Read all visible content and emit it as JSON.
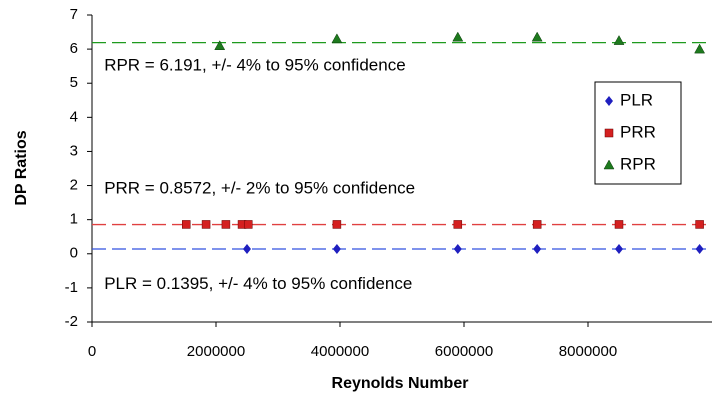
{
  "chart_data": {
    "type": "scatter",
    "xlabel": "Reynolds Number",
    "ylabel": "DP Ratios",
    "xlim": [
      0,
      10000000
    ],
    "xticks": [
      0,
      2000000,
      4000000,
      6000000,
      8000000
    ],
    "ylim": [
      -2,
      7
    ],
    "yticks": [
      -2,
      -1,
      0,
      1,
      2,
      3,
      4,
      5,
      6,
      7
    ],
    "legend": "right",
    "series": [
      {
        "name": "PLR",
        "color": "#1f1fbf",
        "marker": "diamond",
        "x": [
          2500000,
          3950000,
          5900000,
          7180000,
          8500000,
          9800000
        ],
        "values": [
          0.14,
          0.14,
          0.14,
          0.14,
          0.14,
          0.14
        ]
      },
      {
        "name": "PRR",
        "color": "#d42020",
        "marker": "square",
        "x": [
          1520000,
          1840000,
          2160000,
          2420000,
          2520000,
          3950000,
          5900000,
          7180000,
          8500000,
          9800000
        ],
        "values": [
          0.86,
          0.86,
          0.86,
          0.86,
          0.86,
          0.86,
          0.86,
          0.86,
          0.86,
          0.86
        ]
      },
      {
        "name": "RPR",
        "color": "#1e7a1e",
        "marker": "triangle",
        "x": [
          2060000,
          3950000,
          5900000,
          7180000,
          8500000,
          9800000
        ],
        "values": [
          6.1,
          6.3,
          6.35,
          6.35,
          6.25,
          6.0
        ]
      }
    ],
    "reference_lines": [
      {
        "value": 6.191,
        "color": "#1e9a1e"
      },
      {
        "value": 0.8572,
        "color": "#e04040"
      },
      {
        "value": 0.1395,
        "color": "#3050e0"
      }
    ],
    "annotations": [
      {
        "text": "RPR = 6.191, +/- 4% to 95% confidence",
        "x": 100000,
        "y": 5.5
      },
      {
        "text": "PRR = 0.8572, +/- 2% to 95% confidence",
        "x": 100000,
        "y": 1.9
      },
      {
        "text": "PLR = 0.1395, +/- 4% to 95% confidence",
        "x": 100000,
        "y": -0.9
      }
    ]
  }
}
